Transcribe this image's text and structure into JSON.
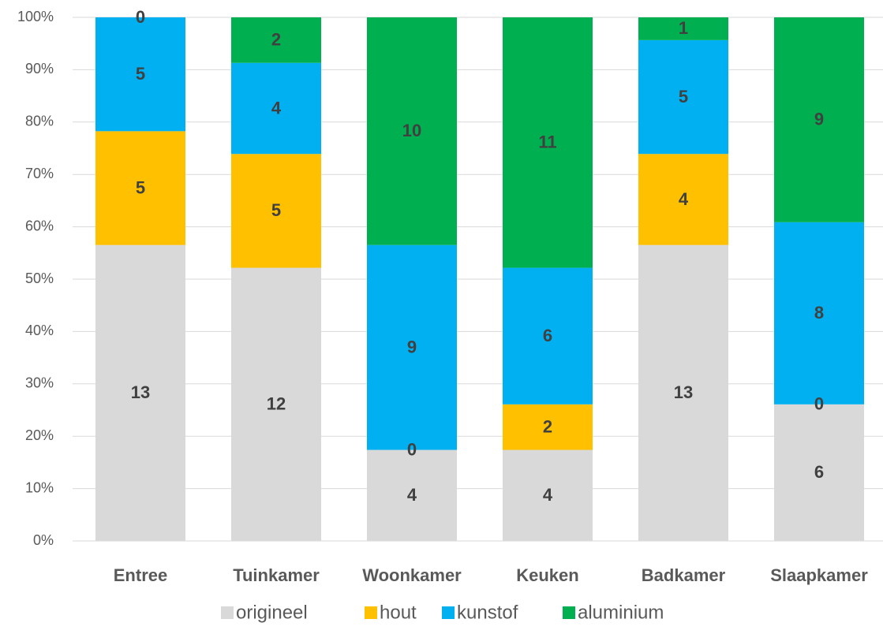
{
  "chart_data": {
    "type": "bar",
    "stacking": "percent",
    "categories": [
      "Entree",
      "Tuinkamer",
      "Woonkamer",
      "Keuken",
      "Badkamer",
      "Slaapkamer"
    ],
    "series": [
      {
        "name": "origineel",
        "color": "#d9d9d9",
        "values": [
          13,
          12,
          4,
          4,
          13,
          6
        ]
      },
      {
        "name": "hout",
        "color": "#ffc000",
        "values": [
          5,
          5,
          0,
          2,
          4,
          0
        ]
      },
      {
        "name": "kunstof",
        "color": "#00b0f0",
        "values": [
          5,
          4,
          9,
          6,
          5,
          8
        ]
      },
      {
        "name": "aluminium",
        "color": "#00b050",
        "values": [
          0,
          2,
          10,
          11,
          1,
          9
        ]
      }
    ],
    "ylim": [
      0,
      100
    ],
    "yticks": [
      {
        "value": 0,
        "label": "0%"
      },
      {
        "value": 10,
        "label": "10%"
      },
      {
        "value": 20,
        "label": "20%"
      },
      {
        "value": 30,
        "label": "30%"
      },
      {
        "value": 40,
        "label": "40%"
      },
      {
        "value": 50,
        "label": "50%"
      },
      {
        "value": 60,
        "label": "60%"
      },
      {
        "value": 70,
        "label": "70%"
      },
      {
        "value": 80,
        "label": "80%"
      },
      {
        "value": 90,
        "label": "90%"
      },
      {
        "value": 100,
        "label": "100%"
      }
    ],
    "grid": true,
    "legend": "bottom"
  }
}
